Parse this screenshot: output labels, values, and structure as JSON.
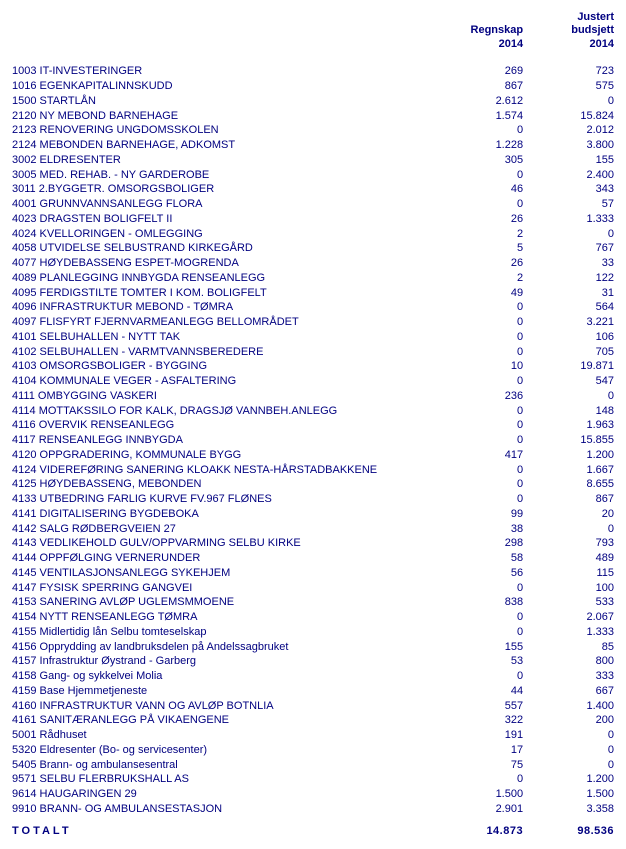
{
  "font_family": "Arial",
  "text_color": "#000080",
  "background_color": "#ffffff",
  "columns": {
    "label": "",
    "regnskap": "Regnskap 2014",
    "budsjett": "Justert budsjett 2014"
  },
  "rows": [
    {
      "label": "1003 IT-INVESTERINGER",
      "c1": "269",
      "c2": "723"
    },
    {
      "label": "1016 EGENKAPITALINNSKUDD",
      "c1": "867",
      "c2": "575"
    },
    {
      "label": "1500 STARTLÅN",
      "c1": "2.612",
      "c2": "0"
    },
    {
      "label": "2120 NY MEBOND BARNEHAGE",
      "c1": "1.574",
      "c2": "15.824"
    },
    {
      "label": "2123 RENOVERING UNGDOMSSKOLEN",
      "c1": "0",
      "c2": "2.012"
    },
    {
      "label": "2124 MEBONDEN BARNEHAGE, ADKOMST",
      "c1": "1.228",
      "c2": "3.800"
    },
    {
      "label": "3002 ELDRESENTER",
      "c1": "305",
      "c2": "155"
    },
    {
      "label": "3005 MED. REHAB. - NY GARDEROBE",
      "c1": "0",
      "c2": "2.400"
    },
    {
      "label": "3011 2.BYGGETR. OMSORGSBOLIGER",
      "c1": "46",
      "c2": "343"
    },
    {
      "label": "4001 GRUNNVANNSANLEGG FLORA",
      "c1": "0",
      "c2": "57"
    },
    {
      "label": "4023 DRAGSTEN BOLIGFELT II",
      "c1": "26",
      "c2": "1.333"
    },
    {
      "label": "4024 KVELLORINGEN - OMLEGGING",
      "c1": "2",
      "c2": "0"
    },
    {
      "label": "4058 UTVIDELSE SELBUSTRAND KIRKEGÅRD",
      "c1": "5",
      "c2": "767"
    },
    {
      "label": "4077 HØYDEBASSENG ESPET-MOGRENDA",
      "c1": "26",
      "c2": "33"
    },
    {
      "label": "4089 PLANLEGGING INNBYGDA RENSEANLEGG",
      "c1": "2",
      "c2": "122"
    },
    {
      "label": "4095 FERDIGSTILTE TOMTER I KOM. BOLIGFELT",
      "c1": "49",
      "c2": "31"
    },
    {
      "label": "4096 INFRASTRUKTUR MEBOND - TØMRA",
      "c1": "0",
      "c2": "564"
    },
    {
      "label": "4097 FLISFYRT FJERNVARMEANLEGG BELLOMRÅDET",
      "c1": "0",
      "c2": "3.221"
    },
    {
      "label": "4101 SELBUHALLEN - NYTT TAK",
      "c1": "0",
      "c2": "106"
    },
    {
      "label": "4102 SELBUHALLEN - VARMTVANNSBEREDERE",
      "c1": "0",
      "c2": "705"
    },
    {
      "label": "4103 OMSORGSBOLIGER - BYGGING",
      "c1": "10",
      "c2": "19.871"
    },
    {
      "label": "4104 KOMMUNALE VEGER - ASFALTERING",
      "c1": "0",
      "c2": "547"
    },
    {
      "label": "4111 OMBYGGING VASKERI",
      "c1": "236",
      "c2": "0"
    },
    {
      "label": "4114 MOTTAKSSILO FOR KALK, DRAGSJØ VANNBEH.ANLEGG",
      "c1": "0",
      "c2": "148"
    },
    {
      "label": "4116 OVERVIK RENSEANLEGG",
      "c1": "0",
      "c2": "1.963"
    },
    {
      "label": "4117 RENSEANLEGG INNBYGDA",
      "c1": "0",
      "c2": "15.855"
    },
    {
      "label": "4120 OPPGRADERING, KOMMUNALE BYGG",
      "c1": "417",
      "c2": "1.200"
    },
    {
      "label": "4124 VIDEREFØRING SANERING KLOAKK NESTA-HÅRSTADBAKKENE",
      "c1": "0",
      "c2": "1.667"
    },
    {
      "label": "4125 HØYDEBASSENG, MEBONDEN",
      "c1": "0",
      "c2": "8.655"
    },
    {
      "label": "4133 UTBEDRING FARLIG KURVE FV.967 FLØNES",
      "c1": "0",
      "c2": "867"
    },
    {
      "label": "4141 DIGITALISERING BYGDEBOKA",
      "c1": "99",
      "c2": "20"
    },
    {
      "label": "4142 SALG RØDBERGVEIEN 27",
      "c1": "38",
      "c2": "0"
    },
    {
      "label": "4143 VEDLIKEHOLD GULV/OPPVARMING SELBU KIRKE",
      "c1": "298",
      "c2": "793"
    },
    {
      "label": "4144 OPPFØLGING VERNERUNDER",
      "c1": "58",
      "c2": "489"
    },
    {
      "label": "4145 VENTILASJONSANLEGG SYKEHJEM",
      "c1": "56",
      "c2": "115"
    },
    {
      "label": "4147 FYSISK SPERRING GANGVEI",
      "c1": "0",
      "c2": "100"
    },
    {
      "label": "4153 SANERING AVLØP UGLEMSMMOENE",
      "c1": "838",
      "c2": "533"
    },
    {
      "label": "4154 NYTT RENSEANLEGG TØMRA",
      "c1": "0",
      "c2": "2.067"
    },
    {
      "label": "4155 Midlertidig lån Selbu tomteselskap",
      "c1": "0",
      "c2": "1.333"
    },
    {
      "label": "4156 Opprydding av landbruksdelen på Andelssagbruket",
      "c1": "155",
      "c2": "85"
    },
    {
      "label": "4157 Infrastruktur Øystrand - Garberg",
      "c1": "53",
      "c2": "800"
    },
    {
      "label": "4158 Gang- og sykkelvei Molia",
      "c1": "0",
      "c2": "333"
    },
    {
      "label": "4159 Base Hjemmetjeneste",
      "c1": "44",
      "c2": "667"
    },
    {
      "label": "4160 INFRASTRUKTUR VANN OG AVLØP BOTNLIA",
      "c1": "557",
      "c2": "1.400"
    },
    {
      "label": "4161 SANITÆRANLEGG PÅ VIKAENGENE",
      "c1": "322",
      "c2": "200"
    },
    {
      "label": "5001 Rådhuset",
      "c1": "191",
      "c2": "0"
    },
    {
      "label": "5320 Eldresenter (Bo- og servicesenter)",
      "c1": "17",
      "c2": "0"
    },
    {
      "label": "5405 Brann- og ambulansesentral",
      "c1": "75",
      "c2": "0"
    },
    {
      "label": "9571 SELBU FLERBRUKSHALL AS",
      "c1": "0",
      "c2": "1.200"
    },
    {
      "label": "9614 HAUGARINGEN 29",
      "c1": "1.500",
      "c2": "1.500"
    },
    {
      "label": "9910 BRANN- OG AMBULANSESTASJON",
      "c1": "2.901",
      "c2": "3.358"
    }
  ],
  "total": {
    "label": "TOTALT",
    "c1": "14.873",
    "c2": "98.536"
  }
}
